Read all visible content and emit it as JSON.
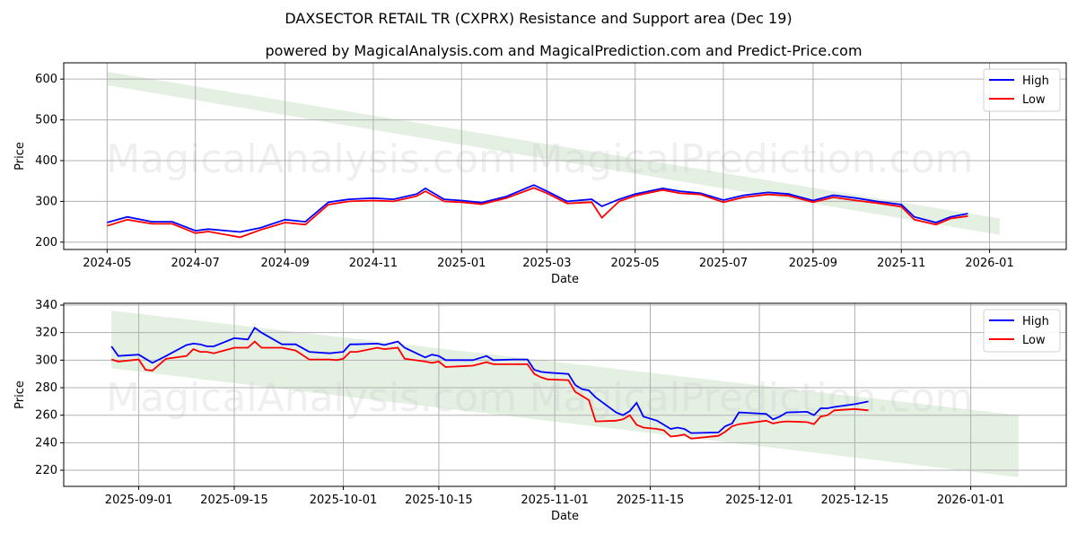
{
  "title": "DAXSECTOR RETAIL TR (CXPRX) Resistance and Support area (Dec 19)",
  "subtitle": "powered by MagicalAnalysis.com and MagicalPrediction.com and Predict-Price.com",
  "watermarks": [
    "MagicalAnalysis.com",
    "MagicalPrediction.com"
  ],
  "colors": {
    "high": "#0000ff",
    "low": "#ff0000",
    "band": "#d8ead6"
  },
  "chart_data": [
    {
      "type": "line",
      "xlabel": "Date",
      "ylabel": "Price",
      "ylim": [
        182,
        640
      ],
      "xlim": [
        "2024-04-01",
        "2026-02-23"
      ],
      "grid": true,
      "legend": "top-right",
      "yticks": [
        "200",
        "300",
        "400",
        "500",
        "600"
      ],
      "xticks": [
        "2024-05",
        "2024-07",
        "2024-09",
        "2024-11",
        "2025-01",
        "2025-03",
        "2025-05",
        "2025-07",
        "2025-09",
        "2025-11",
        "2026-01"
      ],
      "band": {
        "start": "2024-05-01",
        "end": "2026-01-08",
        "upper": [
          618,
          258
        ],
        "lower": [
          585,
          218
        ]
      },
      "series": [
        {
          "name": "High",
          "x": [
            "2024-05-01",
            "2024-05-15",
            "2024-06-01",
            "2024-06-15",
            "2024-07-01",
            "2024-07-10",
            "2024-08-01",
            "2024-08-15",
            "2024-09-01",
            "2024-09-15",
            "2024-10-01",
            "2024-10-15",
            "2024-11-01",
            "2024-11-15",
            "2024-12-01",
            "2024-12-07",
            "2024-12-20",
            "2025-01-01",
            "2025-01-15",
            "2025-02-01",
            "2025-02-20",
            "2025-03-01",
            "2025-03-15",
            "2025-04-01",
            "2025-04-08",
            "2025-04-20",
            "2025-05-01",
            "2025-05-20",
            "2025-06-01",
            "2025-06-15",
            "2025-07-01",
            "2025-07-15",
            "2025-08-01",
            "2025-08-15",
            "2025-09-01",
            "2025-09-15",
            "2025-10-01",
            "2025-10-15",
            "2025-11-01",
            "2025-11-10",
            "2025-11-25",
            "2025-12-05",
            "2025-12-17"
          ],
          "values": [
            248,
            262,
            250,
            250,
            228,
            232,
            225,
            235,
            255,
            250,
            298,
            305,
            308,
            305,
            318,
            332,
            305,
            302,
            297,
            312,
            340,
            325,
            300,
            305,
            288,
            305,
            318,
            332,
            325,
            320,
            303,
            315,
            322,
            318,
            302,
            315,
            308,
            300,
            292,
            262,
            248,
            262,
            270
          ]
        },
        {
          "name": "Low",
          "x": [
            "2024-05-01",
            "2024-05-15",
            "2024-06-01",
            "2024-06-15",
            "2024-07-01",
            "2024-07-10",
            "2024-08-01",
            "2024-08-15",
            "2024-09-01",
            "2024-09-15",
            "2024-10-01",
            "2024-10-15",
            "2024-11-01",
            "2024-11-15",
            "2024-12-01",
            "2024-12-07",
            "2024-12-20",
            "2025-01-01",
            "2025-01-15",
            "2025-02-01",
            "2025-02-20",
            "2025-03-01",
            "2025-03-15",
            "2025-04-01",
            "2025-04-08",
            "2025-04-20",
            "2025-05-01",
            "2025-05-20",
            "2025-06-01",
            "2025-06-15",
            "2025-07-01",
            "2025-07-15",
            "2025-08-01",
            "2025-08-15",
            "2025-09-01",
            "2025-09-15",
            "2025-10-01",
            "2025-10-15",
            "2025-11-01",
            "2025-11-10",
            "2025-11-25",
            "2025-12-05",
            "2025-12-17"
          ],
          "values": [
            240,
            255,
            245,
            245,
            222,
            226,
            212,
            230,
            248,
            243,
            292,
            300,
            302,
            300,
            313,
            325,
            300,
            298,
            293,
            308,
            333,
            320,
            295,
            298,
            260,
            300,
            314,
            328,
            320,
            317,
            298,
            310,
            317,
            314,
            298,
            310,
            302,
            296,
            287,
            255,
            243,
            258,
            264
          ]
        }
      ]
    },
    {
      "type": "line",
      "xlabel": "Date",
      "ylabel": "Price",
      "ylim": [
        208.3,
        341.3
      ],
      "xlim": [
        "2025-08-21",
        "2026-01-15"
      ],
      "grid": true,
      "legend": "top-right",
      "yticks": [
        "220",
        "240",
        "260",
        "280",
        "300",
        "320",
        "340"
      ],
      "xticks": [
        "2025-09-01",
        "2025-09-15",
        "2025-10-01",
        "2025-10-15",
        "2025-11-01",
        "2025-11-15",
        "2025-12-01",
        "2025-12-15",
        "2026-01-01"
      ],
      "band": {
        "start": "2025-08-28",
        "end": "2026-01-08",
        "upper": [
          336,
          260
        ],
        "lower": [
          294,
          215
        ]
      },
      "series": [
        {
          "name": "High",
          "x": [
            "2025-08-28",
            "2025-08-29",
            "2025-09-01",
            "2025-09-02",
            "2025-09-03",
            "2025-09-05",
            "2025-09-08",
            "2025-09-09",
            "2025-09-10",
            "2025-09-11",
            "2025-09-12",
            "2025-09-15",
            "2025-09-17",
            "2025-09-18",
            "2025-09-19",
            "2025-09-22",
            "2025-09-24",
            "2025-09-26",
            "2025-09-29",
            "2025-09-30",
            "2025-10-01",
            "2025-10-02",
            "2025-10-03",
            "2025-10-06",
            "2025-10-07",
            "2025-10-09",
            "2025-10-10",
            "2025-10-13",
            "2025-10-14",
            "2025-10-15",
            "2025-10-16",
            "2025-10-20",
            "2025-10-22",
            "2025-10-23",
            "2025-10-26",
            "2025-10-28",
            "2025-10-29",
            "2025-10-30",
            "2025-10-31",
            "2025-11-03",
            "2025-11-04",
            "2025-11-05",
            "2025-11-06",
            "2025-11-07",
            "2025-11-10",
            "2025-11-11",
            "2025-11-12",
            "2025-11-13",
            "2025-11-14",
            "2025-11-16",
            "2025-11-17",
            "2025-11-18",
            "2025-11-19",
            "2025-11-20",
            "2025-11-21",
            "2025-11-25",
            "2025-11-26",
            "2025-11-27",
            "2025-11-28",
            "2025-12-02",
            "2025-12-03",
            "2025-12-04",
            "2025-12-05",
            "2025-12-08",
            "2025-12-09",
            "2025-12-10",
            "2025-12-11",
            "2025-12-12",
            "2025-12-15",
            "2025-12-17"
          ],
          "values": [
            310,
            303,
            304,
            301,
            298,
            303,
            311,
            312,
            311.5,
            310,
            310,
            316,
            315,
            323.5,
            320,
            311.5,
            311.5,
            306,
            305,
            305.5,
            306,
            311.5,
            311.5,
            312,
            311,
            313.5,
            309,
            302,
            304,
            303,
            300,
            300,
            303,
            300,
            300.5,
            300.5,
            293,
            291.5,
            291,
            290,
            282,
            279,
            278,
            273,
            262,
            260,
            263,
            269,
            259,
            256,
            253,
            250,
            251,
            250,
            247,
            247.5,
            252,
            254,
            262,
            261,
            257,
            259,
            262,
            262.5,
            260,
            265,
            265,
            266,
            268,
            270
          ]
        },
        {
          "name": "Low",
          "x": [
            "2025-08-28",
            "2025-08-29",
            "2025-09-01",
            "2025-09-02",
            "2025-09-03",
            "2025-09-05",
            "2025-09-08",
            "2025-09-09",
            "2025-09-10",
            "2025-09-11",
            "2025-09-12",
            "2025-09-15",
            "2025-09-17",
            "2025-09-18",
            "2025-09-19",
            "2025-09-22",
            "2025-09-24",
            "2025-09-26",
            "2025-09-29",
            "2025-09-30",
            "2025-10-01",
            "2025-10-02",
            "2025-10-03",
            "2025-10-06",
            "2025-10-07",
            "2025-10-09",
            "2025-10-10",
            "2025-10-13",
            "2025-10-14",
            "2025-10-15",
            "2025-10-16",
            "2025-10-20",
            "2025-10-22",
            "2025-10-23",
            "2025-10-26",
            "2025-10-28",
            "2025-10-29",
            "2025-10-30",
            "2025-10-31",
            "2025-11-03",
            "2025-11-04",
            "2025-11-05",
            "2025-11-06",
            "2025-11-07",
            "2025-11-10",
            "2025-11-11",
            "2025-11-12",
            "2025-11-13",
            "2025-11-14",
            "2025-11-16",
            "2025-11-17",
            "2025-11-18",
            "2025-11-19",
            "2025-11-20",
            "2025-11-21",
            "2025-11-25",
            "2025-11-26",
            "2025-11-27",
            "2025-11-28",
            "2025-12-02",
            "2025-12-03",
            "2025-12-04",
            "2025-12-05",
            "2025-12-08",
            "2025-12-09",
            "2025-12-10",
            "2025-12-11",
            "2025-12-12",
            "2025-12-15",
            "2025-12-17"
          ],
          "values": [
            300.5,
            299,
            300.5,
            293,
            292.5,
            301,
            303,
            308,
            306,
            306,
            305,
            309,
            309,
            313.5,
            309,
            309,
            307,
            300.5,
            300.5,
            300,
            301,
            306,
            306,
            309,
            308,
            309,
            301,
            299,
            298,
            299,
            295,
            296,
            298.5,
            297,
            297,
            297,
            290,
            287.5,
            286,
            285.5,
            277,
            274,
            271,
            255.5,
            256,
            257,
            260,
            253,
            251,
            250,
            249,
            244.5,
            245,
            246,
            243,
            245,
            248,
            252,
            253.5,
            256,
            254,
            255,
            255.5,
            255,
            253.5,
            259,
            260,
            263.5,
            264.5,
            263.5
          ]
        }
      ]
    }
  ]
}
